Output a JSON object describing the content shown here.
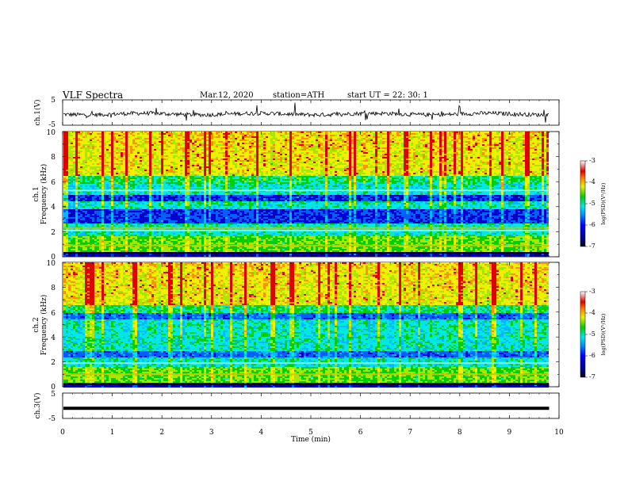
{
  "header": {
    "title": "VLF  Spectra",
    "date": "Mar.12, 2020",
    "station": "station=ATH",
    "start": "start  UT  =   22: 30: 1"
  },
  "colors": {
    "lowest": "#000000",
    "low": "#0000c8",
    "mid_low": "#0080ff",
    "mid": "#00e0e0",
    "mid_high": "#00d000",
    "high": "#f0f000",
    "highest": "#e00000",
    "top": "#ffffff"
  },
  "chart_data": [
    {
      "type": "line",
      "panel": "ch1-waveform",
      "ylabel": "ch.1(V)",
      "ylim": [
        -5,
        5
      ],
      "yticks": [
        "5",
        "-5"
      ],
      "signal": "noisy waveform near 0 V with spikes",
      "xlim": [
        0,
        9.8
      ]
    },
    {
      "type": "heatmap",
      "panel": "ch1-spectrogram",
      "ylabel": "ch.1\nFrequency (kHz)",
      "ylim": [
        0,
        10
      ],
      "yticks": [
        "10",
        "8",
        "6",
        "4",
        "2",
        "0"
      ],
      "colorbar": {
        "label": "log(PSD)(V²/Hz)",
        "range": [
          -7,
          -3
        ],
        "ticks": [
          "-3",
          "-4",
          "-5",
          "-6",
          "-7"
        ]
      },
      "bands_khz": {
        "low_power": [
          [
            2.6,
            3.8
          ],
          [
            4.4,
            4.9
          ]
        ],
        "high_power": [
          [
            6.5,
            10
          ]
        ],
        "lines": [
          0.3,
          0.9,
          2.1,
          2.3,
          5.3
        ]
      }
    },
    {
      "type": "heatmap",
      "panel": "ch2-spectrogram",
      "ylabel": "ch.2\nFrequency (kHz)",
      "ylim": [
        0,
        10
      ],
      "yticks": [
        "10",
        "8",
        "6",
        "4",
        "2",
        "0"
      ],
      "colorbar": {
        "label": "log(PSD)(V²/Hz)",
        "range": [
          -7,
          -3
        ],
        "ticks": [
          "-3",
          "-4",
          "-5",
          "-6",
          "-7"
        ]
      },
      "bands_khz": {
        "low_power": [
          [
            2.3,
            2.9
          ],
          [
            5.4,
            5.9
          ]
        ],
        "high_power": [
          [
            6.5,
            10
          ]
        ],
        "lines": [
          0.2,
          1.0,
          1.9
        ]
      }
    },
    {
      "type": "line",
      "panel": "ch3-waveform",
      "ylabel": "ch.3(V)",
      "ylim": [
        -5,
        5
      ],
      "yticks": [
        "5",
        "-5"
      ],
      "signal": "flat line near -1 V",
      "xlim": [
        0,
        9.8
      ]
    }
  ],
  "xaxis": {
    "label": "Time  (min)",
    "range": [
      0,
      10
    ],
    "ticks": [
      "0",
      "1",
      "2",
      "3",
      "4",
      "5",
      "6",
      "7",
      "8",
      "9",
      "10"
    ]
  }
}
